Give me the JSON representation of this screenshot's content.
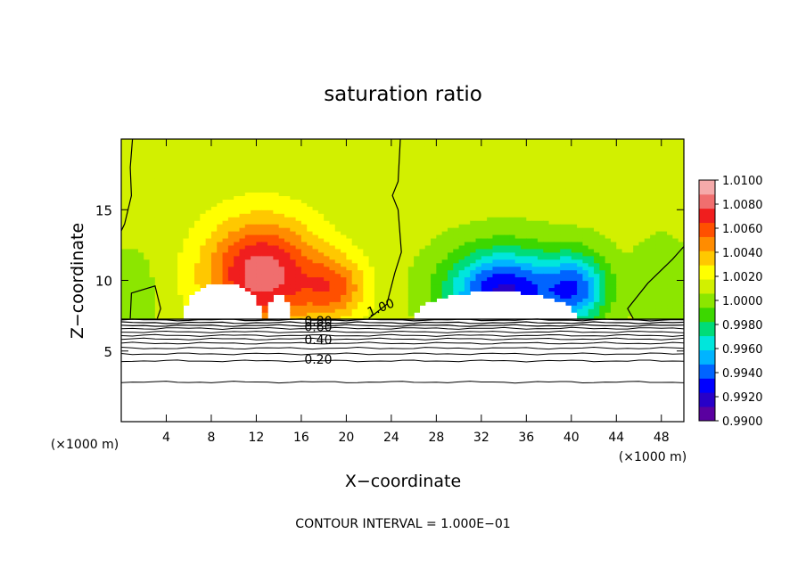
{
  "chart_data": {
    "type": "heatmap",
    "title": "saturation ratio",
    "xlabel": "X−coordinate",
    "ylabel": "Z−coordinate",
    "x_unit_left": "(×1000 m)",
    "x_unit_right": "(×1000 m)",
    "xlim": [
      0,
      50
    ],
    "ylim": [
      0,
      20
    ],
    "x_ticks": [
      4,
      8,
      12,
      16,
      20,
      24,
      28,
      32,
      36,
      40,
      44,
      48
    ],
    "y_ticks": [
      5,
      10,
      15
    ],
    "footer": "CONTOUR INTERVAL = 1.000E−01",
    "colorbar": {
      "min": 0.99,
      "max": 1.01,
      "labels": [
        "1.0100",
        "1.0080",
        "1.0060",
        "1.0040",
        "1.0020",
        "1.0000",
        "0.9980",
        "0.9960",
        "0.9940",
        "0.9920",
        "0.9900"
      ],
      "colors": [
        "#5a00a0",
        "#2800c8",
        "#0000ff",
        "#0064ff",
        "#00b4ff",
        "#00e6dc",
        "#00dc78",
        "#3cd700",
        "#8ce600",
        "#d2f000",
        "#ffff00",
        "#ffc800",
        "#ff8c00",
        "#ff5000",
        "#f01e1e",
        "#f06e6e",
        "#f5aaaa"
      ]
    },
    "contour_labels": [
      {
        "text": "1.00",
        "x": 23.2,
        "y": 7.8
      },
      {
        "text": "0.80",
        "x": 17.5,
        "y": 6.8
      },
      {
        "text": "0.60",
        "x": 17.5,
        "y": 6.4
      },
      {
        "text": "0.40",
        "x": 17.5,
        "y": 5.5
      },
      {
        "text": "0.20",
        "x": 17.5,
        "y": 4.1
      }
    ],
    "contour_levels_below": [
      7.2,
      7.0,
      6.8,
      6.6,
      6.35,
      6.1,
      5.85,
      5.55,
      5.2,
      4.8,
      4.3,
      2.8
    ],
    "fields": {
      "background": 1.001,
      "surface_z": 7.25,
      "blobs": [
        {
          "x": 12.5,
          "z": 10.5,
          "amp": 0.0075,
          "sx": 5.0,
          "sz": 3.8
        },
        {
          "x": 19.0,
          "z": 9.5,
          "amp": 0.004,
          "sx": 2.8,
          "sz": 2.2
        },
        {
          "x": 34.0,
          "z": 9.2,
          "amp": -0.009,
          "sx": 5.0,
          "sz": 3.0
        },
        {
          "x": 40.5,
          "z": 9.5,
          "amp": -0.006,
          "sx": 2.8,
          "sz": 2.5
        },
        {
          "x": 1.0,
          "z": 9.0,
          "amp": -0.0015,
          "sx": 2.0,
          "sz": 3.0
        },
        {
          "x": 48.0,
          "z": 10.0,
          "amp": -0.0015,
          "sx": 2.5,
          "sz": 3.0
        }
      ],
      "clear_regions": [
        {
          "x0": 5.5,
          "x1": 12.5,
          "peak": 9.8
        },
        {
          "x0": 13.0,
          "x1": 15.0,
          "peak": 9.0
        },
        {
          "x0": 26.0,
          "x1": 40.5,
          "peak": 9.2
        }
      ]
    }
  }
}
